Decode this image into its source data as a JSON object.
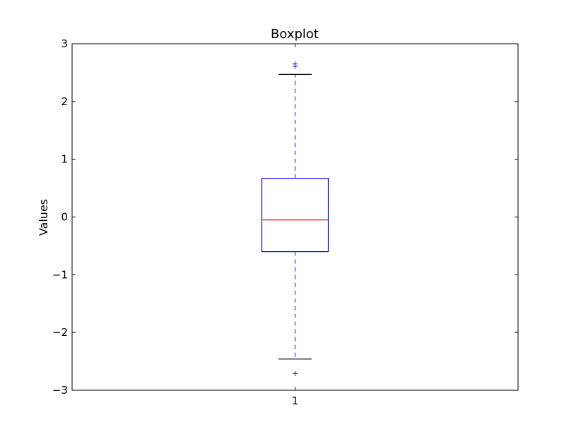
{
  "chart_data": {
    "type": "boxplot",
    "title": "Boxplot",
    "xlabel": "",
    "ylabel": "Values",
    "ylim": [
      -3,
      3
    ],
    "yticks": [
      3,
      2,
      1,
      0,
      -1,
      -2,
      -3
    ],
    "ytick_labels": [
      "3",
      "2",
      "1",
      "0",
      "−1",
      "−2",
      "−3"
    ],
    "categories": [
      "1"
    ],
    "boxes": [
      {
        "category": "1",
        "whisker_low": -2.46,
        "q1": -0.6,
        "median": -0.05,
        "q3": 0.67,
        "whisker_high": 2.47,
        "outliers": [
          2.61,
          2.65,
          -2.71
        ]
      }
    ],
    "grid": false,
    "colors": {
      "box": "#0000ff",
      "whisker": "#0000ff",
      "median": "#ff0000",
      "cap": "#000000",
      "outlier": "#0000ff"
    }
  }
}
